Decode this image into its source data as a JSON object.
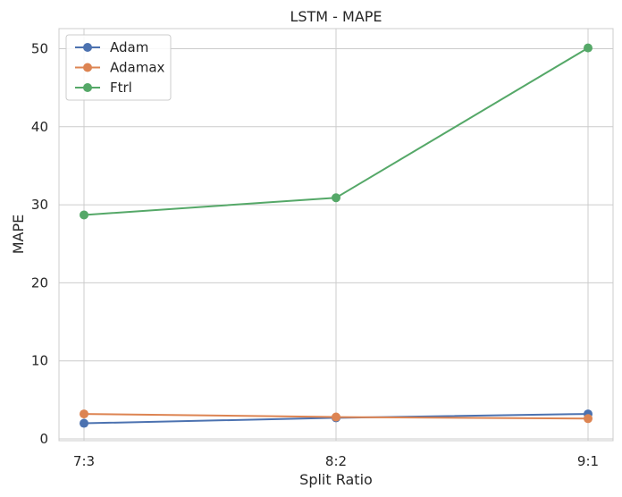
{
  "chart_data": {
    "type": "line",
    "title": "LSTM - MAPE",
    "xlabel": "Split Ratio",
    "ylabel": "MAPE",
    "categories": [
      "7:3",
      "8:2",
      "9:1"
    ],
    "ylim": [
      0,
      52.5
    ],
    "yticks": [
      "0",
      "10",
      "20",
      "30",
      "40",
      "50"
    ],
    "grid": true,
    "legend_position": "top-left",
    "series": [
      {
        "name": "Adam",
        "color": "#4c72b0",
        "values": [
          2.0,
          2.7,
          3.2
        ]
      },
      {
        "name": "Adamax",
        "color": "#dd8452",
        "values": [
          3.2,
          2.8,
          2.6
        ]
      },
      {
        "name": "Ftrl",
        "color": "#55a868",
        "values": [
          28.7,
          30.9,
          50.1
        ]
      }
    ]
  }
}
